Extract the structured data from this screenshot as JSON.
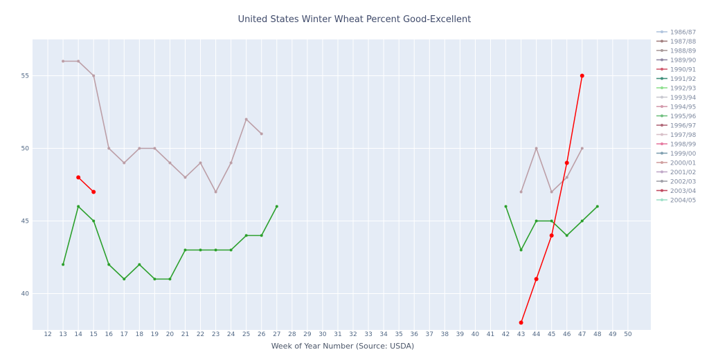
{
  "chart_data": {
    "type": "line",
    "title": "United States Winter Wheat Percent Good-Excellent",
    "xlabel": "Week of Year Number     (Source: USDA)",
    "ylabel": "",
    "xlim": [
      11,
      51.5
    ],
    "ylim": [
      37.5,
      57.5
    ],
    "x_ticks": [
      12,
      13,
      14,
      15,
      16,
      17,
      18,
      19,
      20,
      21,
      22,
      23,
      24,
      25,
      26,
      27,
      28,
      29,
      30,
      31,
      32,
      33,
      34,
      35,
      36,
      37,
      38,
      39,
      40,
      41,
      42,
      43,
      44,
      45,
      46,
      47,
      48,
      49,
      50
    ],
    "y_ticks": [
      40,
      45,
      50,
      55
    ],
    "grid": true,
    "legend_position": "right",
    "legend": [
      {
        "label": "1986/87",
        "color": "#b0c4de"
      },
      {
        "label": "1987/88",
        "color": "#a17f7f"
      },
      {
        "label": "1988/89",
        "color": "#a89a9a"
      },
      {
        "label": "1989/90",
        "color": "#8f88a3"
      },
      {
        "label": "1990/91",
        "color": "#d05a6e"
      },
      {
        "label": "1991/92",
        "color": "#3f8f7a"
      },
      {
        "label": "1992/93",
        "color": "#8ee08e"
      },
      {
        "label": "1993/94",
        "color": "#c8c8d0"
      },
      {
        "label": "1994/95",
        "color": "#d39aac"
      },
      {
        "label": "1995/96",
        "color": "#6fbf7f"
      },
      {
        "label": "1996/97",
        "color": "#b06878"
      },
      {
        "label": "1997/98",
        "color": "#d8c0c8"
      },
      {
        "label": "1998/99",
        "color": "#e67aa0"
      },
      {
        "label": "1999/00",
        "color": "#7f9fb0"
      },
      {
        "label": "2000/01",
        "color": "#d0a0a0"
      },
      {
        "label": "2001/02",
        "color": "#c0a8c8"
      },
      {
        "label": "2002/03",
        "color": "#a0a0a8"
      },
      {
        "label": "2003/04",
        "color": "#c04a60"
      },
      {
        "label": "2004/05",
        "color": "#9fe0c8"
      }
    ],
    "series": [
      {
        "color": "#bc9ea6",
        "segments": [
          {
            "x": [
              13,
              14,
              15,
              16,
              17,
              18,
              19,
              20,
              21,
              22,
              23,
              24,
              25,
              26
            ],
            "y": [
              56,
              56,
              55,
              50,
              49,
              50,
              50,
              49,
              48,
              49,
              47,
              49,
              52,
              51
            ]
          },
          {
            "x": [
              43,
              44,
              45,
              46,
              47
            ],
            "y": [
              47,
              50,
              47,
              48,
              50
            ]
          }
        ]
      },
      {
        "color": "#2ca02c",
        "segments": [
          {
            "x": [
              13,
              14,
              15,
              16,
              17,
              18,
              19,
              20,
              21,
              22,
              23,
              24,
              25,
              26,
              27
            ],
            "y": [
              42,
              46,
              45,
              42,
              41,
              42,
              41,
              41,
              43,
              43,
              43,
              43,
              44,
              44,
              46
            ]
          },
          {
            "x": [
              42,
              43,
              44,
              45,
              46,
              47,
              48
            ],
            "y": [
              46,
              43,
              45,
              45,
              44,
              45,
              46
            ]
          }
        ]
      },
      {
        "color": "#ff0000",
        "segments": [
          {
            "x": [
              14,
              15
            ],
            "y": [
              48,
              47
            ]
          },
          {
            "x": [
              43,
              44,
              45,
              46,
              47
            ],
            "y": [
              38,
              41,
              44,
              49,
              55
            ]
          }
        ]
      }
    ]
  }
}
